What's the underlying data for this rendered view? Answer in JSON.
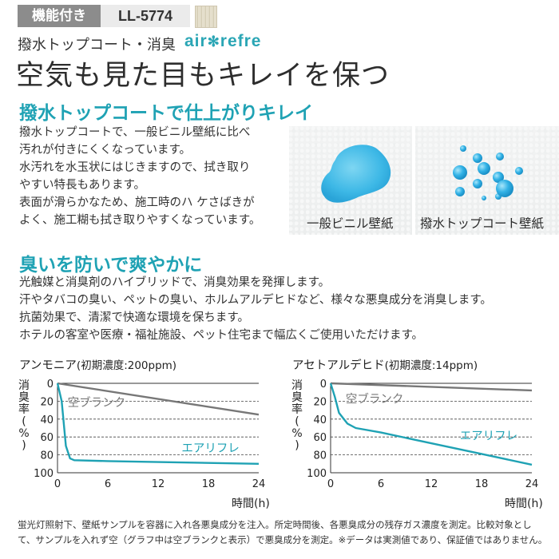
{
  "header": {
    "feature_tag": "機能付き",
    "product_code": "LL-5774",
    "subtitle": "撥水トップコート・消臭",
    "brand_left": "air",
    "brand_mark": "✻",
    "brand_right": "refre",
    "title": "空気も見た目もキレイを保つ"
  },
  "section_water": {
    "title": "撥水トップコートで仕上がりキレイ",
    "lines": [
      "撥水トップコートで、一般ビニル壁紙に比べ",
      "汚れが付きにくくなっています。",
      "水汚れを水玉状にはじきますので、拭き取り",
      "やすい特長もあります。",
      "表面が滑らかなため、施工時のハ ケさばきが",
      "よく、施工糊も拭き取りやすくなっています。"
    ],
    "photo_left_label": "一般ビニル壁紙",
    "photo_right_label": "撥水トップコート壁紙"
  },
  "section_odor": {
    "title": "臭いを防いで爽やかに",
    "lines": [
      "光触媒と消臭剤のハイブリッドで、消臭効果を発揮します。",
      "汗やタバコの臭い、ペットの臭い、ホルムアルデヒドなど、様々な悪臭成分を消臭します。",
      "抗菌効果で、清潔で快適な環境を保ちます。",
      "ホテルの客室や医療・福祉施設、ペット住宅まで幅広くご使用いただけます。"
    ]
  },
  "colors": {
    "accent": "#1fa2b4",
    "blank_series": "#777777"
  },
  "chart_data": [
    {
      "type": "line",
      "title": "アンモニア",
      "subtitle": "(初期濃度:200ppm)",
      "ylabel": "消臭率(%)",
      "xlabel": "時間(h)",
      "x_ticks": [
        0,
        6,
        12,
        18,
        24
      ],
      "y_ticks": [
        0,
        20,
        40,
        60,
        80,
        100
      ],
      "xlim": [
        0,
        24
      ],
      "ylim": [
        0,
        100
      ],
      "y_inverted": true,
      "grid": "dashed-horizontal",
      "series": [
        {
          "name": "空ブランク",
          "color": "#777777",
          "x": [
            0,
            24
          ],
          "y": [
            0,
            35
          ]
        },
        {
          "name": "エアリフレ",
          "color": "#1fa2b4",
          "x": [
            0,
            0.5,
            1,
            1.5,
            2,
            6,
            12,
            18,
            24
          ],
          "y": [
            0,
            20,
            70,
            84,
            86,
            87,
            88,
            89,
            90
          ]
        }
      ]
    },
    {
      "type": "line",
      "title": "アセトアルデヒド",
      "subtitle": "(初期濃度:14ppm)",
      "ylabel": "消臭率(%)",
      "xlabel": "時間(h)",
      "x_ticks": [
        0,
        6,
        12,
        18,
        24
      ],
      "y_ticks": [
        0,
        20,
        40,
        60,
        80,
        100
      ],
      "xlim": [
        0,
        24
      ],
      "ylim": [
        0,
        100
      ],
      "y_inverted": true,
      "grid": "dashed-horizontal",
      "series": [
        {
          "name": "空ブランク",
          "color": "#777777",
          "x": [
            0,
            24
          ],
          "y": [
            0,
            8
          ]
        },
        {
          "name": "エアリフレ",
          "color": "#1fa2b4",
          "x": [
            0,
            0.5,
            1,
            2,
            3,
            6,
            12,
            18,
            24
          ],
          "y": [
            0,
            15,
            33,
            45,
            50,
            55,
            67,
            79,
            91
          ]
        }
      ]
    }
  ],
  "footnote": {
    "line1": "蛍光灯照射下、壁紙サンプルを容器に入れ各悪臭成分を注入。所定時間後、各悪臭成分の残存ガス濃度を測定。比較対象とし",
    "line2": "て、サンプルを入れず空（グラフ中は空ブランクと表示）で悪臭成分を測定。※データは実測値であり、保証値ではありません。"
  }
}
